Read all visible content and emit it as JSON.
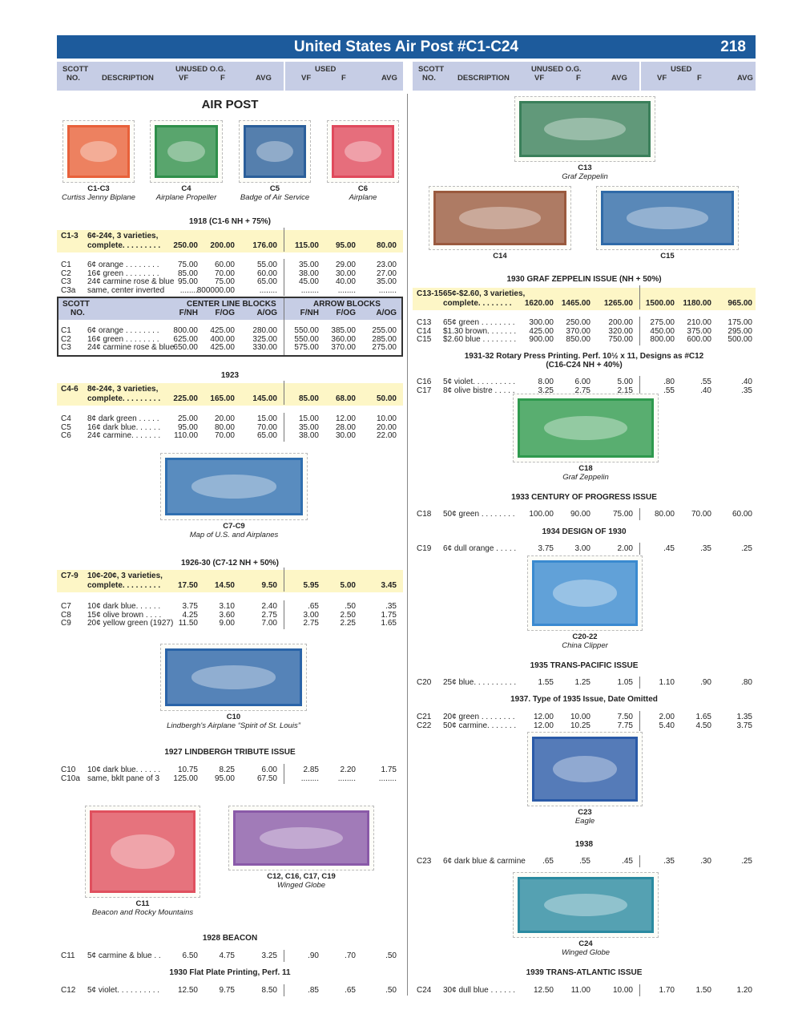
{
  "header": {
    "title": "United States Air Post #C1-C24",
    "page": "218"
  },
  "col_headers": {
    "scott": "SCOTT",
    "no": "NO.",
    "description": "DESCRIPTION",
    "unused": "UNUSED O.G.",
    "used": "USED",
    "vf": "VF",
    "f": "F",
    "avg": "AVG"
  },
  "cl_headers": {
    "scott": "SCOTT",
    "no": "NO.",
    "center": "CENTER LINE BLOCKS",
    "arrow": "ARROW BLOCKS",
    "cols": [
      "F/NH",
      "F/OG",
      "A/OG",
      "F/NH",
      "F/OG",
      "A/OG"
    ]
  },
  "left": [
    {
      "type": "heading",
      "text": "AIR POST",
      "big": true
    },
    {
      "type": "stamps",
      "items": [
        {
          "id": "C1-C3",
          "name": "Curtiss Jenny Biplane",
          "color": "#e8613a"
        },
        {
          "id": "C4",
          "name": "Airplane Propeller",
          "color": "#2f8f4a"
        },
        {
          "id": "C5",
          "name": "Badge of Air Service",
          "color": "#2b5f9a"
        },
        {
          "id": "C6",
          "name": "Airplane",
          "color": "#e04a5c"
        }
      ]
    },
    {
      "type": "heading",
      "text": "1918 (C1-6 NH + 75%)"
    },
    {
      "type": "set",
      "no": "C1-3",
      "desc1": "6¢-24¢, 3 varieties,",
      "desc2": "complete. . . . . . . . .",
      "vals": [
        "250.00",
        "200.00",
        "176.00",
        "115.00",
        "95.00",
        "80.00"
      ]
    },
    {
      "type": "rows",
      "rows": [
        [
          "C1",
          "6¢ orange . . . . . . . .",
          "75.00",
          "60.00",
          "55.00",
          "35.00",
          "29.00",
          "23.00"
        ],
        [
          "C2",
          "16¢ green . . . . . . . .",
          "85.00",
          "70.00",
          "60.00",
          "38.00",
          "30.00",
          "27.00"
        ],
        [
          "C3",
          "24¢ carmine rose & blue",
          "95.00",
          "75.00",
          "65.00",
          "45.00",
          "40.00",
          "35.00"
        ],
        [
          "C3a",
          "same, center inverted",
          "........",
          "800000.00",
          "........",
          "........",
          "........",
          "........"
        ]
      ]
    },
    {
      "type": "clbox",
      "rows": [
        [
          "C1",
          "6¢ orange . . . . . . . .",
          "800.00",
          "425.00",
          "280.00",
          "550.00",
          "385.00",
          "255.00"
        ],
        [
          "C2",
          "16¢ green . . . . . . . .",
          "625.00",
          "400.00",
          "325.00",
          "550.00",
          "360.00",
          "285.00"
        ],
        [
          "C3",
          "24¢ carmine rose & blue",
          "650.00",
          "425.00",
          "330.00",
          "575.00",
          "370.00",
          "275.00"
        ]
      ]
    },
    {
      "type": "heading",
      "text": "1923"
    },
    {
      "type": "set",
      "no": "C4-6",
      "desc1": "8¢-24¢, 3 varieties,",
      "desc2": "complete. . . . . . . . .",
      "vals": [
        "225.00",
        "165.00",
        "145.00",
        "85.00",
        "68.00",
        "50.00"
      ]
    },
    {
      "type": "rows",
      "rows": [
        [
          "C4",
          "8¢ dark green . . . . .",
          "25.00",
          "20.00",
          "15.00",
          "15.00",
          "12.00",
          "10.00"
        ],
        [
          "C5",
          "16¢ dark blue. . . . . .",
          "95.00",
          "80.00",
          "70.00",
          "35.00",
          "28.00",
          "20.00"
        ],
        [
          "C6",
          "24¢ carmine. . . . . . .",
          "110.00",
          "70.00",
          "65.00",
          "38.00",
          "30.00",
          "22.00"
        ]
      ]
    },
    {
      "type": "stamps",
      "items": [
        {
          "id": "C7-C9",
          "name": "Map of U.S. and Airplanes",
          "color": "#2f6fb0"
        }
      ]
    },
    {
      "type": "heading",
      "text": "1926-30 (C7-12 NH + 50%)"
    },
    {
      "type": "set",
      "no": "C7-9",
      "desc1": "10¢-20¢, 3 varieties,",
      "desc2": "complete. . . . . . . . .",
      "vals": [
        "17.50",
        "14.50",
        "9.50",
        "5.95",
        "5.00",
        "3.45"
      ]
    },
    {
      "type": "rows",
      "rows": [
        [
          "C7",
          "10¢ dark blue. . . . . .",
          "3.75",
          "3.10",
          "2.40",
          ".65",
          ".50",
          ".35"
        ],
        [
          "C8",
          "15¢ olive brown . . . .",
          "4.25",
          "3.60",
          "2.75",
          "3.00",
          "2.50",
          "1.75"
        ],
        [
          "C9",
          "20¢ yellow green (1927)",
          "11.50",
          "9.00",
          "7.00",
          "2.75",
          "2.25",
          "1.65"
        ]
      ]
    },
    {
      "type": "stamps",
      "items": [
        {
          "id": "C10",
          "name": "Lindbergh's Airplane “Spirit of St. Louis”",
          "color": "#2a64a8"
        }
      ]
    },
    {
      "type": "heading",
      "text": "1927 LINDBERGH TRIBUTE ISSUE"
    },
    {
      "type": "rows",
      "rows": [
        [
          "C10",
          "10¢ dark blue. . . . . .",
          "10.75",
          "8.25",
          "6.00",
          "2.85",
          "2.20",
          "1.75"
        ],
        [
          "C10a",
          "same, bklt pane of 3",
          "125.00",
          "95.00",
          "67.50",
          "........",
          "........",
          "........"
        ]
      ]
    },
    {
      "type": "stamps",
      "items": [
        {
          "id": "C11",
          "name": "Beacon and Rocky Mountains",
          "color": "#e0505e"
        },
        {
          "id": "C12, C16, C17, C19",
          "name": "Winged Globe",
          "color": "#8a5aa8"
        }
      ]
    },
    {
      "type": "heading",
      "text": "1928 BEACON"
    },
    {
      "type": "rows",
      "rows": [
        [
          "C11",
          "5¢ carmine & blue . .",
          "6.50",
          "4.75",
          "3.25",
          ".90",
          ".70",
          ".50"
        ]
      ]
    },
    {
      "type": "heading",
      "text": "1930 Flat Plate Printing, Perf. 11"
    },
    {
      "type": "rows",
      "rows": [
        [
          "C12",
          "5¢ violet. . . . . . . . . .",
          "12.50",
          "9.75",
          "8.50",
          ".85",
          ".65",
          ".50"
        ]
      ]
    }
  ],
  "right": [
    {
      "type": "stamps",
      "items": [
        {
          "id": "C13",
          "name": "Graf Zeppelin",
          "color": "#3a7f5a"
        }
      ]
    },
    {
      "type": "stamps",
      "items": [
        {
          "id": "C14",
          "name": "",
          "color": "#9a5a3e"
        },
        {
          "id": "C15",
          "name": "",
          "color": "#2f6aa8"
        }
      ]
    },
    {
      "type": "heading",
      "text": "1930 GRAF ZEPPELIN ISSUE (NH + 50%)"
    },
    {
      "type": "set",
      "no": "C13-15",
      "desc1": "65¢-$2.60, 3 varieties,",
      "desc2": "complete. . . . . . . .",
      "vals": [
        "1620.00",
        "1465.00",
        "1265.00",
        "1500.00",
        "1180.00",
        "965.00"
      ]
    },
    {
      "type": "rows",
      "rows": [
        [
          "C13",
          "65¢ green . . . . . . . .",
          "300.00",
          "250.00",
          "200.00",
          "275.00",
          "210.00",
          "175.00"
        ],
        [
          "C14",
          "$1.30 brown. . . . . . .",
          "425.00",
          "370.00",
          "320.00",
          "450.00",
          "375.00",
          "295.00"
        ],
        [
          "C15",
          "$2.60 blue . . . . . . . .",
          "900.00",
          "850.00",
          "750.00",
          "800.00",
          "600.00",
          "500.00"
        ]
      ]
    },
    {
      "type": "heading",
      "text": "1931-32 Rotary Press Printing. Perf. 10½ x 11, Designs  as #C12",
      "text2": "(C16-C24 NH + 40%)"
    },
    {
      "type": "rows",
      "rows": [
        [
          "C16",
          "5¢ violet. . . . . . . . . .",
          "8.00",
          "6.00",
          "5.00",
          ".80",
          ".55",
          ".40"
        ],
        [
          "C17",
          "8¢ olive bistre . . . . .",
          "3.25",
          "2.75",
          "2.15",
          ".55",
          ".40",
          ".35"
        ]
      ]
    },
    {
      "type": "stamps",
      "items": [
        {
          "id": "C18",
          "name": "Graf Zeppelin",
          "color": "#2f9a4e"
        }
      ]
    },
    {
      "type": "heading",
      "text": "1933 CENTURY OF PROGRESS ISSUE"
    },
    {
      "type": "rows",
      "rows": [
        [
          "C18",
          "50¢ green . . . . . . . .",
          "100.00",
          "90.00",
          "75.00",
          "80.00",
          "70.00",
          "60.00"
        ]
      ]
    },
    {
      "type": "heading",
      "text": "1934 DESIGN OF 1930"
    },
    {
      "type": "rows",
      "rows": [
        [
          "C19",
          "6¢ dull orange . . . . .",
          "3.75",
          "3.00",
          "2.00",
          ".45",
          ".35",
          ".25"
        ]
      ]
    },
    {
      "type": "stamps",
      "items": [
        {
          "id": "C20-22",
          "name": "China Clipper",
          "color": "#3a8ad0"
        }
      ]
    },
    {
      "type": "heading",
      "text": "1935 TRANS-PACIFIC ISSUE"
    },
    {
      "type": "rows",
      "rows": [
        [
          "C20",
          "25¢ blue. . . . . . . . . .",
          "1.55",
          "1.25",
          "1.05",
          "1.10",
          ".90",
          ".80"
        ]
      ]
    },
    {
      "type": "heading",
      "text": "1937.  Type of 1935 Issue, Date Omitted"
    },
    {
      "type": "rows",
      "rows": [
        [
          "C21",
          "20¢ green . . . . . . . .",
          "12.00",
          "10.00",
          "7.50",
          "2.00",
          "1.65",
          "1.35"
        ],
        [
          "C22",
          "50¢ carmine. . . . . . .",
          "12.00",
          "10.25",
          "7.75",
          "5.40",
          "4.50",
          "3.75"
        ]
      ]
    },
    {
      "type": "stamps",
      "items": [
        {
          "id": "C23",
          "name": "Eagle",
          "color": "#2a5aa8"
        }
      ]
    },
    {
      "type": "heading",
      "text": "1938"
    },
    {
      "type": "rows",
      "rows": [
        [
          "C23",
          "6¢ dark blue & carmine",
          ".65",
          ".55",
          ".45",
          ".35",
          ".30",
          ".25"
        ]
      ]
    },
    {
      "type": "stamps",
      "items": [
        {
          "id": "C24",
          "name": "Winged Globe",
          "color": "#2a8aa0"
        }
      ]
    },
    {
      "type": "heading",
      "text": "1939 TRANS-ATLANTIC ISSUE"
    },
    {
      "type": "rows",
      "rows": [
        [
          "C24",
          "30¢ dull blue . . . . . .",
          "12.50",
          "11.00",
          "10.00",
          "1.70",
          "1.50",
          "1.20"
        ]
      ]
    }
  ]
}
